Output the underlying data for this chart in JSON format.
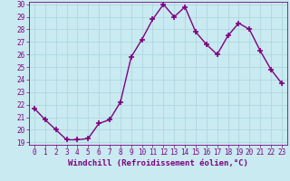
{
  "x": [
    0,
    1,
    2,
    3,
    4,
    5,
    6,
    7,
    8,
    9,
    10,
    11,
    12,
    13,
    14,
    15,
    16,
    17,
    18,
    19,
    20,
    21,
    22,
    23
  ],
  "y": [
    21.7,
    20.8,
    20.0,
    19.2,
    19.2,
    19.3,
    20.5,
    20.8,
    22.2,
    25.8,
    27.2,
    28.8,
    30.0,
    29.0,
    29.8,
    27.8,
    26.8,
    26.0,
    27.5,
    28.5,
    28.0,
    26.3,
    24.8,
    23.7
  ],
  "line_color": "#800080",
  "marker": "+",
  "marker_size": 4,
  "bg_color": "#c8eaf0",
  "grid_color": "#b0d8e0",
  "xlabel": "Windchill (Refroidissement éolien,°C)",
  "ylim": [
    19,
    30
  ],
  "xlim": [
    -0.5,
    23.5
  ],
  "yticks": [
    19,
    20,
    21,
    22,
    23,
    24,
    25,
    26,
    27,
    28,
    29,
    30
  ],
  "xticks": [
    0,
    1,
    2,
    3,
    4,
    5,
    6,
    7,
    8,
    9,
    10,
    11,
    12,
    13,
    14,
    15,
    16,
    17,
    18,
    19,
    20,
    21,
    22,
    23
  ],
  "tick_color": "#800080",
  "label_fontsize": 6.5,
  "tick_fontsize": 5.5,
  "linewidth": 1.0,
  "marker_linewidth": 1.2
}
